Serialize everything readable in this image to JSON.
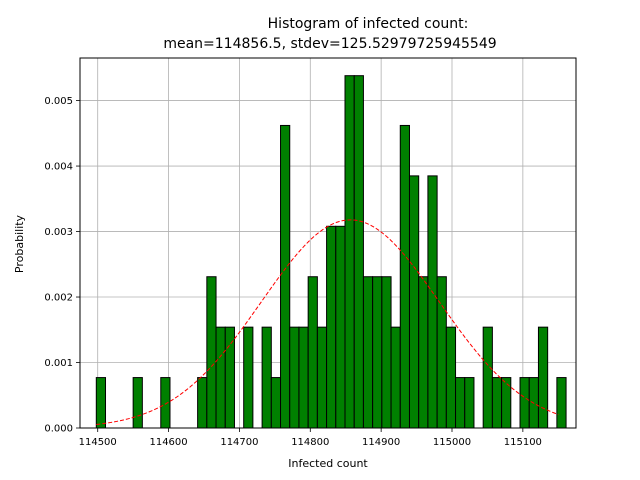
{
  "chart_data": {
    "type": "bar",
    "title_line1": "Histogram of infected count:",
    "title_line2": "mean=114856.5, stdev=125.52979725945549",
    "xlabel": "Infected count",
    "ylabel": "Probability",
    "xlim": [
      114475,
      115175
    ],
    "ylim": [
      0,
      0.00565
    ],
    "xticks": [
      114500,
      114600,
      114700,
      114800,
      114900,
      115000,
      115100
    ],
    "xtick_labels": [
      "114500",
      "114600",
      "114700",
      "114800",
      "114900",
      "115000",
      "115100"
    ],
    "yticks": [
      0,
      0.001,
      0.002,
      0.003,
      0.004,
      0.005
    ],
    "ytick_labels": [
      "0.000",
      "0.001",
      "0.002",
      "0.003",
      "0.004",
      "0.005"
    ],
    "grid": true,
    "bins": {
      "start": 114498,
      "width": 13.0,
      "values": [
        0.00077,
        0,
        0,
        0,
        0.00077,
        0,
        0,
        0.00077,
        0,
        0,
        0,
        0.00077,
        0.00231,
        0.00154,
        0.00154,
        0,
        0.00154,
        0,
        0.00154,
        0.00077,
        0.00462,
        0.00154,
        0.00154,
        0.00231,
        0.00154,
        0.00308,
        0.00308,
        0.00538,
        0.00538,
        0.00231,
        0.00231,
        0.00231,
        0.00154,
        0.00462,
        0.00385,
        0.00231,
        0.00385,
        0.00231,
        0.00154,
        0.00077,
        0.00077,
        0,
        0.00154,
        0.00077,
        0.00077,
        0,
        0.00077,
        0.00077,
        0.00154,
        0,
        0.00077
      ]
    },
    "normal_curve": {
      "mean": 114856.5,
      "stdev": 125.52979725945549,
      "x_range": [
        114498,
        115150
      ]
    },
    "colors": {
      "bar_fill": "#008000",
      "bar_edge": "#000000",
      "curve": "#ff0000",
      "grid": "#b0b0b0"
    }
  }
}
